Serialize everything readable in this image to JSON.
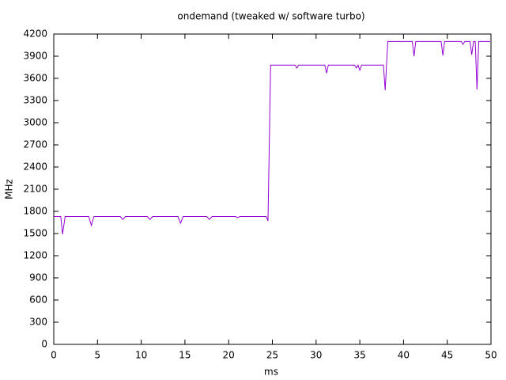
{
  "chart_data": {
    "type": "line",
    "title": "ondemand (tweaked w/ software turbo)",
    "xlabel": "ms",
    "ylabel": "MHz",
    "x": [
      0,
      0.8,
      1.0,
      1.3,
      4.0,
      4.3,
      4.6,
      7.6,
      7.9,
      8.2,
      10.7,
      11.0,
      11.3,
      14.2,
      14.5,
      14.8,
      17.5,
      17.8,
      18.1,
      20.8,
      21.0,
      21.3,
      24.3,
      24.5,
      24.8,
      27.6,
      27.8,
      28.0,
      31.0,
      31.2,
      31.4,
      34.4,
      34.6,
      34.8,
      35.0,
      35.2,
      37.7,
      37.9,
      38.2,
      41.0,
      41.2,
      41.4,
      44.3,
      44.5,
      44.7,
      46.6,
      46.8,
      47.0,
      47.6,
      47.8,
      48.0,
      48.2,
      48.4,
      48.6,
      49.9
    ],
    "series": [
      {
        "color": "#9400d3",
        "values": [
          1730,
          1730,
          1490,
          1730,
          1730,
          1610,
          1730,
          1730,
          1690,
          1730,
          1730,
          1690,
          1730,
          1730,
          1640,
          1730,
          1730,
          1690,
          1730,
          1730,
          1715,
          1730,
          1730,
          1670,
          3780,
          3780,
          3740,
          3780,
          3780,
          3670,
          3780,
          3780,
          3740,
          3780,
          3710,
          3780,
          3780,
          3440,
          4100,
          4100,
          3900,
          4100,
          4100,
          3910,
          4100,
          4100,
          4060,
          4100,
          4100,
          3920,
          4100,
          4100,
          3450,
          4100,
          4100
        ]
      }
    ],
    "xlim": [
      0,
      50
    ],
    "xticks": [
      0,
      5,
      10,
      15,
      20,
      25,
      30,
      35,
      40,
      45,
      50
    ],
    "ylim": [
      0,
      4200
    ],
    "yticks": [
      0,
      300,
      600,
      900,
      1200,
      1500,
      1800,
      2100,
      2400,
      2700,
      3000,
      3300,
      3600,
      3900,
      4200
    ],
    "grid": false
  }
}
